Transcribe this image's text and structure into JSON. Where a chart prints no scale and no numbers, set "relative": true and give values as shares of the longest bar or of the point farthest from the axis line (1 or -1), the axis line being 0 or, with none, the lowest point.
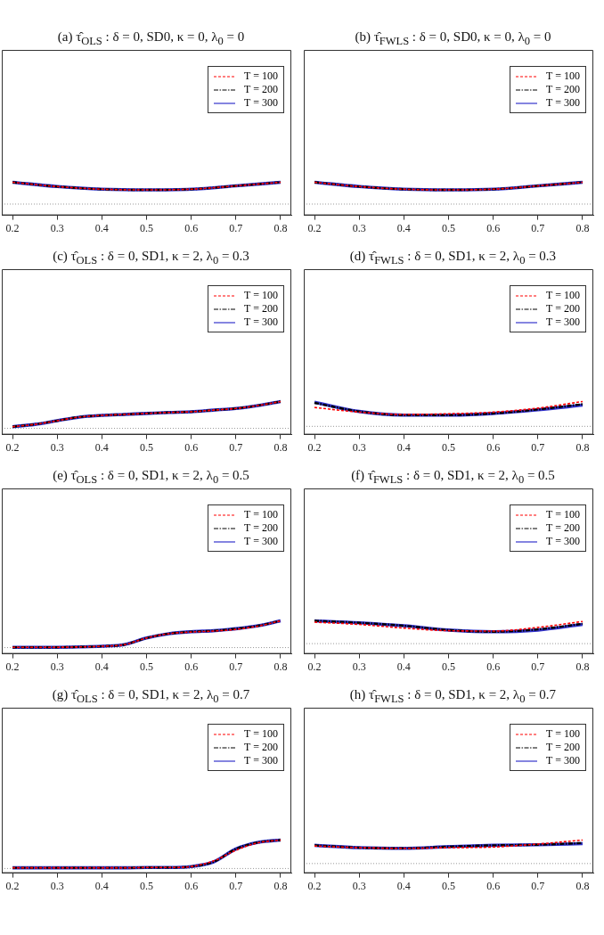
{
  "chart_data": [
    {
      "type": "line",
      "title": "(a) τ̂$_{OLS}$ : δ = 0, SD0, κ = 0, λ$_{0}$ = 0",
      "relative": true,
      "legend": "top right",
      "grid": false,
      "x": [
        0.2,
        0.3,
        0.4,
        0.5,
        0.6,
        0.7,
        0.8
      ],
      "xlim": [
        0.176,
        0.824
      ],
      "xticks": [
        0.2,
        0.3,
        0.4,
        0.5,
        0.6,
        0.7,
        0.8
      ],
      "ref_lines": [
        {
          "axis": "y",
          "value": 0.34,
          "color": "#999999",
          "line_style": "dotted"
        }
      ],
      "series": [
        {
          "name": "T = 100",
          "color": "#ff0000",
          "line_style": "dashed",
          "values": [
            1,
            0.87,
            0.79,
            0.77,
            0.79,
            0.89,
            1
          ]
        },
        {
          "name": "T = 200",
          "color": "#000000",
          "line_style": "dotted",
          "values": [
            1,
            0.87,
            0.79,
            0.77,
            0.79,
            0.89,
            1
          ]
        },
        {
          "name": "T = 300",
          "color": "#3333cc",
          "line_style": "solid",
          "values": [
            1,
            0.87,
            0.79,
            0.77,
            0.79,
            0.89,
            1
          ]
        }
      ]
    },
    {
      "type": "line",
      "title": "(b) τ̂$_{FWLS}$ : δ = 0, SD0, κ = 0, λ$_{0}$ = 0",
      "relative": true,
      "legend": "top right",
      "grid": false,
      "x": [
        0.2,
        0.3,
        0.4,
        0.5,
        0.6,
        0.7,
        0.8
      ],
      "xlim": [
        0.176,
        0.824
      ],
      "xticks": [
        0.2,
        0.3,
        0.4,
        0.5,
        0.6,
        0.7,
        0.8
      ],
      "ref_lines": [
        {
          "axis": "y",
          "value": 0.34,
          "color": "#999999",
          "line_style": "dotted"
        }
      ],
      "series": [
        {
          "name": "T = 100",
          "color": "#ff0000",
          "line_style": "dashed",
          "values": [
            1,
            0.87,
            0.79,
            0.77,
            0.79,
            0.89,
            1
          ]
        },
        {
          "name": "T = 200",
          "color": "#000000",
          "line_style": "dotted",
          "values": [
            1,
            0.87,
            0.79,
            0.77,
            0.79,
            0.89,
            1
          ]
        },
        {
          "name": "T = 300",
          "color": "#3333cc",
          "line_style": "solid",
          "values": [
            1,
            0.87,
            0.79,
            0.77,
            0.79,
            0.89,
            1
          ]
        }
      ]
    },
    {
      "type": "line",
      "title": "(c) τ̂$_{OLS}$ : δ = 0, SD1, κ = 2, λ$_{0}$ = 0.3",
      "relative": true,
      "legend": "top right",
      "grid": false,
      "x": [
        0.2,
        0.25,
        0.3,
        0.35,
        0.4,
        0.45,
        0.5,
        0.55,
        0.6,
        0.65,
        0.7,
        0.75,
        0.8
      ],
      "xlim": [
        0.176,
        0.824
      ],
      "xticks": [
        0.2,
        0.3,
        0.4,
        0.5,
        0.6,
        0.7,
        0.8
      ],
      "ref_lines": [
        {
          "axis": "y",
          "value": 0.19,
          "color": "#999999",
          "line_style": "dotted"
        }
      ],
      "series": [
        {
          "name": "T = 100",
          "color": "#ff0000",
          "line_style": "dashed",
          "values": [
            0.24,
            0.31,
            0.42,
            0.53,
            0.58,
            0.61,
            0.64,
            0.67,
            0.69,
            0.74,
            0.79,
            0.88,
            1
          ]
        },
        {
          "name": "T = 200",
          "color": "#000000",
          "line_style": "dotted",
          "values": [
            0.24,
            0.31,
            0.42,
            0.53,
            0.58,
            0.61,
            0.64,
            0.67,
            0.69,
            0.74,
            0.79,
            0.88,
            1
          ]
        },
        {
          "name": "T = 300",
          "color": "#3333cc",
          "line_style": "solid",
          "values": [
            0.24,
            0.31,
            0.42,
            0.53,
            0.58,
            0.61,
            0.64,
            0.67,
            0.69,
            0.74,
            0.79,
            0.88,
            1
          ]
        }
      ]
    },
    {
      "type": "line",
      "title": "(d) τ̂$_{FWLS}$ : δ = 0, SD1, κ = 2, λ$_{0}$ = 0.3",
      "relative": true,
      "legend": "top right",
      "grid": false,
      "x": [
        0.2,
        0.3,
        0.4,
        0.5,
        0.6,
        0.7,
        0.8
      ],
      "xlim": [
        0.176,
        0.824
      ],
      "xticks": [
        0.2,
        0.3,
        0.4,
        0.5,
        0.6,
        0.7,
        0.8
      ],
      "ref_lines": [
        {
          "axis": "y",
          "value": 0.25,
          "color": "#999999",
          "line_style": "dotted"
        }
      ],
      "series": [
        {
          "name": "T = 100",
          "color": "#ff0000",
          "line_style": "dashed",
          "values": [
            0.82,
            0.68,
            0.61,
            0.63,
            0.68,
            0.8,
            1
          ]
        },
        {
          "name": "T = 200",
          "color": "#000000",
          "line_style": "dotted",
          "values": [
            0.96,
            0.7,
            0.59,
            0.59,
            0.64,
            0.76,
            0.92
          ]
        },
        {
          "name": "T = 300",
          "color": "#3333cc",
          "line_style": "solid",
          "values": [
            0.98,
            0.7,
            0.59,
            0.59,
            0.64,
            0.75,
            0.89
          ]
        }
      ]
    },
    {
      "type": "line",
      "title": "(e) τ̂$_{OLS}$ : δ = 0, SD1, κ = 2, λ$_{0}$ = 0.5",
      "relative": true,
      "legend": "top right",
      "grid": false,
      "x": [
        0.2,
        0.25,
        0.3,
        0.35,
        0.4,
        0.45,
        0.5,
        0.55,
        0.6,
        0.65,
        0.7,
        0.75,
        0.8
      ],
      "xlim": [
        0.176,
        0.824
      ],
      "xticks": [
        0.2,
        0.3,
        0.4,
        0.5,
        0.6,
        0.7,
        0.8
      ],
      "ref_lines": [
        {
          "axis": "y",
          "value": 0.19,
          "color": "#999999",
          "line_style": "dotted"
        }
      ],
      "series": [
        {
          "name": "T = 100",
          "color": "#ff0000",
          "line_style": "dashed",
          "values": [
            0.2,
            0.2,
            0.2,
            0.21,
            0.23,
            0.28,
            0.48,
            0.61,
            0.66,
            0.69,
            0.74,
            0.84,
            1
          ]
        },
        {
          "name": "T = 200",
          "color": "#000000",
          "line_style": "dotted",
          "values": [
            0.2,
            0.2,
            0.2,
            0.21,
            0.23,
            0.28,
            0.48,
            0.61,
            0.67,
            0.7,
            0.76,
            0.85,
            1
          ]
        },
        {
          "name": "T = 300",
          "color": "#3333cc",
          "line_style": "solid",
          "values": [
            0.2,
            0.2,
            0.2,
            0.21,
            0.23,
            0.28,
            0.48,
            0.61,
            0.67,
            0.7,
            0.76,
            0.85,
            1
          ]
        }
      ]
    },
    {
      "type": "line",
      "title": "(f) τ̂$_{FWLS}$ : δ = 0, SD1, κ = 2, λ$_{0}$ = 0.5",
      "relative": true,
      "legend": "top right",
      "grid": false,
      "x": [
        0.2,
        0.3,
        0.4,
        0.5,
        0.6,
        0.7,
        0.8
      ],
      "xlim": [
        0.176,
        0.824
      ],
      "xticks": [
        0.2,
        0.3,
        0.4,
        0.5,
        0.6,
        0.7,
        0.8
      ],
      "ref_lines": [
        {
          "axis": "y",
          "value": 0.31,
          "color": "#999999",
          "line_style": "dotted"
        }
      ],
      "series": [
        {
          "name": "T = 100",
          "color": "#ff0000",
          "line_style": "dashed",
          "values": [
            0.96,
            0.89,
            0.78,
            0.7,
            0.69,
            0.8,
            0.98
          ]
        },
        {
          "name": "T = 200",
          "color": "#000000",
          "line_style": "dotted",
          "values": [
            1,
            0.94,
            0.85,
            0.72,
            0.67,
            0.74,
            0.91
          ]
        },
        {
          "name": "T = 300",
          "color": "#3333cc",
          "line_style": "solid",
          "values": [
            1,
            0.94,
            0.85,
            0.72,
            0.67,
            0.72,
            0.89
          ]
        }
      ]
    },
    {
      "type": "line",
      "title": "(g) τ̂$_{OLS}$ : δ = 0, SD1, κ = 2, λ$_{0}$ = 0.7",
      "relative": true,
      "legend": "top right",
      "grid": false,
      "x": [
        0.2,
        0.25,
        0.3,
        0.35,
        0.4,
        0.45,
        0.5,
        0.55,
        0.6,
        0.65,
        0.7,
        0.75,
        0.8
      ],
      "xlim": [
        0.176,
        0.824
      ],
      "xticks": [
        0.2,
        0.3,
        0.4,
        0.5,
        0.6,
        0.7,
        0.8
      ],
      "ref_lines": [
        {
          "axis": "y",
          "value": 0.14,
          "color": "#999999",
          "line_style": "dotted"
        }
      ],
      "series": [
        {
          "name": "T = 100",
          "color": "#ff0000",
          "line_style": "dashed",
          "values": [
            0.16,
            0.16,
            0.16,
            0.16,
            0.16,
            0.16,
            0.17,
            0.17,
            0.2,
            0.37,
            0.69,
            0.92,
            1
          ]
        },
        {
          "name": "T = 200",
          "color": "#000000",
          "line_style": "dotted",
          "values": [
            0.16,
            0.16,
            0.16,
            0.16,
            0.16,
            0.16,
            0.17,
            0.17,
            0.2,
            0.34,
            0.73,
            0.93,
            1
          ]
        },
        {
          "name": "T = 300",
          "color": "#3333cc",
          "line_style": "solid",
          "values": [
            0.16,
            0.16,
            0.16,
            0.16,
            0.16,
            0.16,
            0.17,
            0.17,
            0.2,
            0.34,
            0.73,
            0.93,
            1
          ]
        }
      ]
    },
    {
      "type": "line",
      "title": "(h) τ̂$_{FWLS}$ : δ = 0, SD1, κ = 2, λ$_{0}$ = 0.7",
      "relative": true,
      "legend": "top right",
      "grid": false,
      "x": [
        0.2,
        0.3,
        0.4,
        0.5,
        0.6,
        0.7,
        0.8
      ],
      "xlim": [
        0.176,
        0.824
      ],
      "xticks": [
        0.2,
        0.3,
        0.4,
        0.5,
        0.6,
        0.7,
        0.8
      ],
      "ref_lines": [
        {
          "axis": "y",
          "value": 0.29,
          "color": "#999999",
          "line_style": "dotted"
        }
      ],
      "series": [
        {
          "name": "T = 100",
          "color": "#ff0000",
          "line_style": "dashed",
          "values": [
            0.82,
            0.77,
            0.75,
            0.77,
            0.79,
            0.88,
            1
          ]
        },
        {
          "name": "T = 200",
          "color": "#000000",
          "line_style": "dotted",
          "values": [
            0.84,
            0.77,
            0.75,
            0.8,
            0.84,
            0.86,
            0.91
          ]
        },
        {
          "name": "T = 300",
          "color": "#3333cc",
          "line_style": "solid",
          "values": [
            0.84,
            0.77,
            0.75,
            0.8,
            0.84,
            0.86,
            0.89
          ]
        }
      ]
    }
  ]
}
